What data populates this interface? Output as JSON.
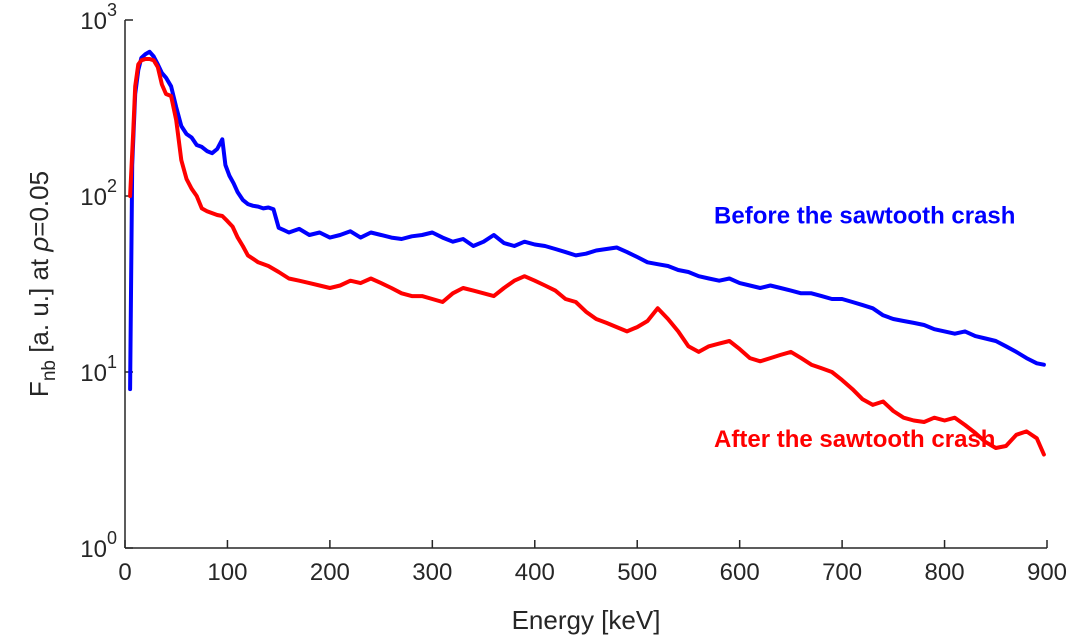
{
  "chart_data": {
    "type": "line",
    "xlabel": "Energy [keV]",
    "ylabel": {
      "main": "F",
      "sub": "nb",
      "rest": " [a. u.] at  ",
      "greek": "ρ",
      "value": "=0.05"
    },
    "xlim": [
      0,
      900
    ],
    "ylim": [
      1,
      1000
    ],
    "yscale": "log",
    "x_ticks": [
      0,
      100,
      200,
      300,
      400,
      500,
      600,
      700,
      800,
      900
    ],
    "y_ticks": [
      {
        "base": "10",
        "exp": "0",
        "value": 1
      },
      {
        "base": "10",
        "exp": "1",
        "value": 10
      },
      {
        "base": "10",
        "exp": "2",
        "value": 100
      },
      {
        "base": "10",
        "exp": "3",
        "value": 1000
      }
    ],
    "grid": false,
    "series": [
      {
        "name": "Before the sawtooth crash",
        "color": "#0000ff",
        "x": [
          5,
          7,
          10,
          13,
          16,
          20,
          24,
          28,
          32,
          36,
          40,
          45,
          50,
          55,
          60,
          65,
          70,
          75,
          80,
          85,
          90,
          95,
          98,
          102,
          106,
          110,
          115,
          120,
          125,
          130,
          135,
          140,
          145,
          150,
          155,
          160,
          170,
          180,
          190,
          200,
          210,
          220,
          230,
          240,
          250,
          260,
          270,
          280,
          290,
          300,
          310,
          320,
          330,
          340,
          350,
          360,
          370,
          380,
          390,
          400,
          410,
          420,
          430,
          440,
          450,
          460,
          470,
          480,
          490,
          500,
          510,
          520,
          530,
          540,
          550,
          560,
          570,
          580,
          590,
          600,
          610,
          620,
          630,
          640,
          650,
          660,
          670,
          680,
          690,
          700,
          710,
          720,
          730,
          740,
          750,
          760,
          770,
          780,
          790,
          800,
          810,
          820,
          830,
          840,
          850,
          860,
          870,
          880,
          890,
          897
        ],
        "y": [
          8,
          150,
          380,
          520,
          610,
          640,
          660,
          620,
          560,
          500,
          470,
          420,
          320,
          250,
          225,
          215,
          195,
          190,
          180,
          175,
          185,
          210,
          150,
          130,
          118,
          105,
          95,
          90,
          88,
          87,
          85,
          86,
          84,
          66,
          64,
          62,
          65,
          60,
          62,
          58,
          60,
          63,
          58,
          62,
          60,
          58,
          57,
          59,
          60,
          62,
          58,
          55,
          57,
          52,
          55,
          60,
          54,
          52,
          55,
          53,
          52,
          50,
          48,
          46,
          47,
          49,
          50,
          51,
          48,
          45,
          42,
          41,
          40,
          38,
          37,
          35,
          34,
          33,
          34,
          32,
          31,
          30,
          31,
          30,
          29,
          28,
          28,
          27,
          26,
          26,
          25,
          24,
          23,
          21,
          20,
          19.5,
          19,
          18.5,
          17.5,
          17,
          16.5,
          17,
          16,
          15.5,
          15,
          14,
          13,
          12,
          11.2,
          11
        ]
      },
      {
        "name": "After the sawtooth crash",
        "color": "#ff0000",
        "x": [
          5,
          8,
          10,
          13,
          16,
          20,
          24,
          28,
          32,
          36,
          40,
          45,
          50,
          55,
          60,
          65,
          70,
          75,
          80,
          85,
          90,
          95,
          100,
          105,
          110,
          115,
          120,
          125,
          130,
          140,
          150,
          160,
          170,
          180,
          190,
          200,
          210,
          220,
          230,
          240,
          250,
          260,
          270,
          280,
          290,
          300,
          310,
          320,
          330,
          340,
          350,
          360,
          370,
          380,
          390,
          400,
          410,
          420,
          430,
          440,
          450,
          460,
          470,
          480,
          490,
          500,
          510,
          520,
          530,
          540,
          550,
          560,
          570,
          580,
          590,
          600,
          610,
          620,
          630,
          640,
          650,
          660,
          670,
          680,
          690,
          700,
          710,
          720,
          730,
          740,
          750,
          760,
          770,
          780,
          790,
          800,
          810,
          820,
          830,
          840,
          850,
          860,
          870,
          880,
          890,
          897
        ],
        "y": [
          100,
          230,
          420,
          560,
          590,
          600,
          600,
          590,
          540,
          430,
          380,
          370,
          270,
          160,
          125,
          110,
          100,
          85,
          82,
          80,
          78,
          77,
          72,
          67,
          58,
          52,
          46,
          44,
          42,
          40,
          37,
          34,
          33,
          32,
          31,
          30,
          31,
          33,
          32,
          34,
          32,
          30,
          28,
          27,
          27,
          26,
          25,
          28,
          30,
          29,
          28,
          27,
          30,
          33,
          35,
          33,
          31,
          29,
          26,
          25,
          22,
          20,
          19,
          18,
          17,
          18,
          19.5,
          23,
          20,
          17,
          14,
          13,
          14,
          14.5,
          15,
          13.5,
          12,
          11.5,
          12,
          12.5,
          13,
          12,
          11,
          10.5,
          10,
          9,
          8,
          7,
          6.5,
          6.8,
          6,
          5.5,
          5.3,
          5.2,
          5.5,
          5.3,
          5.5,
          5,
          4.5,
          4,
          3.7,
          3.8,
          4.4,
          4.6,
          4.2,
          3.4
        ]
      }
    ],
    "annotations": [
      {
        "text": "Before the sawtooth crash",
        "color": "#0000ff",
        "x": 575,
        "y": 70
      },
      {
        "text": "After the sawtooth crash",
        "color": "#ff0000",
        "x": 575,
        "y": 3.75
      }
    ]
  }
}
